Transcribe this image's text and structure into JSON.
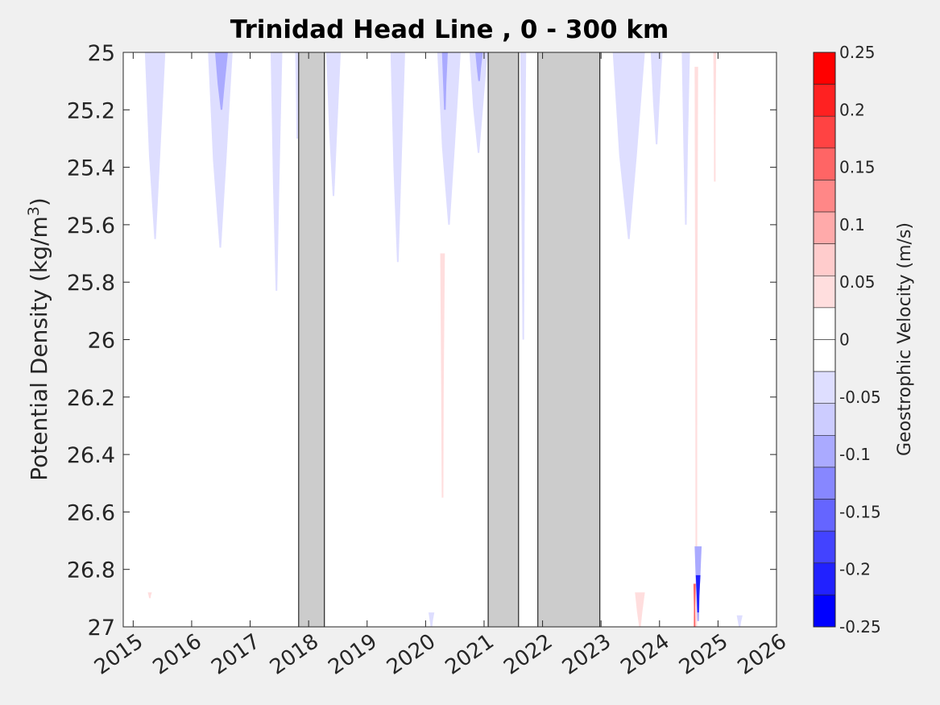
{
  "chart_data": {
    "type": "heatmap",
    "title": "Trinidad Head Line , 0 - 300 km",
    "xlabel": "",
    "ylabel": "Potential Density (kg/m",
    "ylabel_sup": "3",
    "ylabel_close": ")",
    "xlim": [
      2014.83,
      2026.0
    ],
    "ylim": [
      25,
      27
    ],
    "y_reversed": true,
    "x_ticks": [
      2015,
      2016,
      2017,
      2018,
      2019,
      2020,
      2021,
      2022,
      2023,
      2024,
      2025,
      2026
    ],
    "x_tick_labels": [
      "2015",
      "2016",
      "2017",
      "2018",
      "2019",
      "2020",
      "2021",
      "2022",
      "2023",
      "2024",
      "2025",
      "2026"
    ],
    "y_ticks": [
      25,
      25.2,
      25.4,
      25.6,
      25.8,
      26,
      26.2,
      26.4,
      26.6,
      26.8,
      27
    ],
    "y_tick_labels": [
      "25",
      "25.2",
      "25.4",
      "25.6",
      "25.8",
      "26",
      "26.2",
      "26.4",
      "26.6",
      "26.8",
      "27"
    ],
    "no_data_periods": [
      {
        "start": 2017.83,
        "end": 2018.27
      },
      {
        "start": 2021.07,
        "end": 2021.59
      },
      {
        "start": 2021.92,
        "end": 2022.98
      }
    ],
    "no_data_color": "#cccccc",
    "velocity_features": [
      {
        "x_start": 2015.2,
        "x_end": 2015.55,
        "y_top": 25.0,
        "y_bottom": 25.65,
        "level": -0.05
      },
      {
        "x_start": 2016.28,
        "x_end": 2016.7,
        "y_top": 25.0,
        "y_bottom": 25.68,
        "level": -0.05
      },
      {
        "x_start": 2016.4,
        "x_end": 2016.62,
        "y_top": 25.0,
        "y_bottom": 25.2,
        "level": -0.1
      },
      {
        "x_start": 2017.35,
        "x_end": 2017.55,
        "y_top": 25.0,
        "y_bottom": 25.83,
        "level": -0.05
      },
      {
        "x_start": 2017.77,
        "x_end": 2017.84,
        "y_top": 25.0,
        "y_bottom": 25.3,
        "level": -0.05
      },
      {
        "x_start": 2018.3,
        "x_end": 2018.55,
        "y_top": 25.0,
        "y_bottom": 25.5,
        "level": -0.05
      },
      {
        "x_start": 2019.4,
        "x_end": 2019.65,
        "y_top": 25.0,
        "y_bottom": 25.73,
        "level": -0.05
      },
      {
        "x_start": 2020.2,
        "x_end": 2020.6,
        "y_top": 25.0,
        "y_bottom": 25.6,
        "level": -0.05
      },
      {
        "x_start": 2020.28,
        "x_end": 2020.38,
        "y_top": 25.0,
        "y_bottom": 25.2,
        "level": -0.1
      },
      {
        "x_start": 2020.75,
        "x_end": 2021.06,
        "y_top": 25.0,
        "y_bottom": 25.35,
        "level": -0.05
      },
      {
        "x_start": 2020.85,
        "x_end": 2020.98,
        "y_top": 25.0,
        "y_bottom": 25.1,
        "level": -0.1
      },
      {
        "x_start": 2021.62,
        "x_end": 2021.72,
        "y_top": 25.0,
        "y_bottom": 26.0,
        "level": -0.05
      },
      {
        "x_start": 2023.2,
        "x_end": 2023.75,
        "y_top": 25.0,
        "y_bottom": 25.65,
        "level": -0.05
      },
      {
        "x_start": 2023.85,
        "x_end": 2024.05,
        "y_top": 25.0,
        "y_bottom": 25.32,
        "level": -0.05
      },
      {
        "x_start": 2024.38,
        "x_end": 2024.52,
        "y_top": 25.0,
        "y_bottom": 25.6,
        "level": -0.05
      },
      {
        "x_start": 2020.25,
        "x_end": 2020.33,
        "y_top": 25.7,
        "y_bottom": 26.55,
        "level": 0.05
      },
      {
        "x_start": 2024.6,
        "x_end": 2024.66,
        "y_top": 25.05,
        "y_bottom": 27.0,
        "level": 0.05
      },
      {
        "x_start": 2024.92,
        "x_end": 2024.97,
        "y_top": 25.0,
        "y_bottom": 25.45,
        "level": 0.05
      },
      {
        "x_start": 2024.6,
        "x_end": 2024.72,
        "y_top": 26.72,
        "y_bottom": 26.98,
        "level": -0.1
      },
      {
        "x_start": 2024.62,
        "x_end": 2024.7,
        "y_top": 26.82,
        "y_bottom": 26.95,
        "level": -0.2
      },
      {
        "x_start": 2024.58,
        "x_end": 2024.62,
        "y_top": 26.85,
        "y_bottom": 27.0,
        "level": 0.15
      },
      {
        "x_start": 2023.58,
        "x_end": 2023.75,
        "y_top": 26.88,
        "y_bottom": 27.0,
        "level": 0.05
      },
      {
        "x_start": 2015.25,
        "x_end": 2015.32,
        "y_top": 26.88,
        "y_bottom": 26.9,
        "level": 0.05
      },
      {
        "x_start": 2020.05,
        "x_end": 2020.15,
        "y_top": 26.95,
        "y_bottom": 27.0,
        "level": -0.05
      },
      {
        "x_start": 2025.32,
        "x_end": 2025.42,
        "y_top": 26.96,
        "y_bottom": 27.0,
        "level": -0.05
      }
    ],
    "colorbar": {
      "label": "Geostrophic Velocity (m/s)",
      "range": [
        -0.25,
        0.25
      ],
      "tick_values": [
        0.25,
        0.2,
        0.15,
        0.1,
        0.05,
        0,
        -0.05,
        -0.1,
        -0.15,
        -0.2,
        -0.25
      ],
      "tick_labels": [
        "0.25",
        "0.2",
        "0.15",
        "0.1",
        "0.05",
        "0",
        "-0.05",
        "-0.1",
        "-0.15",
        "-0.2",
        "-0.25"
      ],
      "level_colors": [
        "#ff0000",
        "#ff2121",
        "#ff4343",
        "#ff6565",
        "#ff8787",
        "#ffaaaa",
        "#ffcccc",
        "#ffdede",
        "#ffffff",
        "#ffffff",
        "#dedeff",
        "#ccccff",
        "#aaaaff",
        "#8787ff",
        "#6565ff",
        "#4343ff",
        "#2121ff",
        "#0000ff"
      ],
      "level_colors_order": "top-to-bottom"
    },
    "grid": false,
    "legend": "none"
  }
}
